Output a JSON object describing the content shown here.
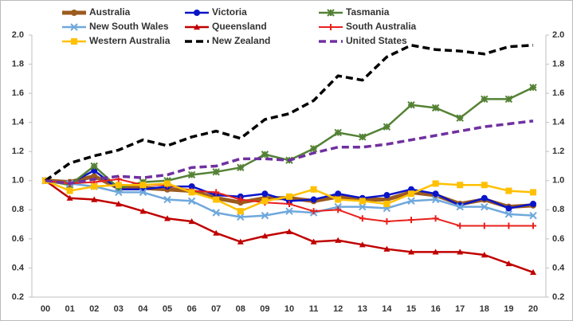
{
  "chart_data": {
    "type": "line",
    "categories": [
      "00",
      "01",
      "02",
      "03",
      "04",
      "05",
      "06",
      "07",
      "08",
      "09",
      "10",
      "11",
      "12",
      "13",
      "14",
      "15",
      "16",
      "17",
      "18",
      "19",
      "20"
    ],
    "ylim": [
      0.2,
      2.0
    ],
    "yticks": [
      0.2,
      0.4,
      0.6,
      0.8,
      {
        "value": 1.0,
        "label": "1.0"
      },
      1.2,
      1.4,
      1.6,
      1.8,
      {
        "value": 2.0,
        "label": "2.0"
      }
    ],
    "y2lim": [
      0.2,
      2.0
    ],
    "y2ticks": [
      0.2,
      0.4,
      0.6,
      0.8,
      {
        "value": 1.0,
        "label": "1.0"
      },
      1.2,
      1.4,
      1.6,
      1.8,
      {
        "value": 2.0,
        "label": "2.0"
      }
    ],
    "series": [
      {
        "name": "Australia",
        "color": "#9c5b1f",
        "marker": "circle",
        "dash": false,
        "width": 5,
        "values": [
          1.0,
          0.99,
          1.03,
          0.95,
          0.95,
          0.94,
          0.93,
          0.88,
          0.85,
          0.88,
          0.88,
          0.86,
          0.89,
          0.87,
          0.87,
          0.92,
          0.9,
          0.84,
          0.87,
          0.82,
          0.83
        ]
      },
      {
        "name": "Victoria",
        "color": "#0a14c8",
        "marker": "circle",
        "dash": false,
        "width": 2.5,
        "values": [
          1.0,
          0.98,
          1.07,
          0.94,
          0.94,
          0.96,
          0.96,
          0.9,
          0.89,
          0.91,
          0.86,
          0.87,
          0.91,
          0.88,
          0.9,
          0.94,
          0.91,
          0.83,
          0.88,
          0.81,
          0.84
        ]
      },
      {
        "name": "Tasmania",
        "color": "#548235",
        "marker": "star",
        "dash": false,
        "width": 2.5,
        "values": [
          1.0,
          0.97,
          1.1,
          0.95,
          0.99,
          1.0,
          1.04,
          1.06,
          1.09,
          1.18,
          1.14,
          1.22,
          1.33,
          1.3,
          1.37,
          1.52,
          1.5,
          1.43,
          1.56,
          1.56,
          1.64
        ]
      },
      {
        "name": "New South Wales",
        "color": "#6fa8dc",
        "marker": "x",
        "dash": false,
        "width": 2.5,
        "values": [
          1.0,
          0.98,
          0.96,
          0.92,
          0.92,
          0.87,
          0.86,
          0.78,
          0.75,
          0.76,
          0.79,
          0.78,
          0.82,
          0.82,
          0.81,
          0.86,
          0.87,
          0.82,
          0.82,
          0.77,
          0.76
        ]
      },
      {
        "name": "Queensland",
        "color": "#c00000",
        "marker": "triangle",
        "dash": false,
        "width": 2.5,
        "values": [
          1.0,
          0.88,
          0.87,
          0.84,
          0.79,
          0.74,
          0.72,
          0.64,
          0.58,
          0.62,
          0.65,
          0.58,
          0.59,
          0.56,
          0.53,
          0.51,
          0.51,
          0.51,
          0.49,
          0.43,
          0.37
        ]
      },
      {
        "name": "South Australia",
        "color": "#e8201c",
        "marker": "plus",
        "dash": false,
        "width": 2,
        "values": [
          1.0,
          0.98,
          0.99,
          1.01,
          0.97,
          0.97,
          0.93,
          0.92,
          0.87,
          0.85,
          0.84,
          0.79,
          0.8,
          0.74,
          0.72,
          0.73,
          0.74,
          0.69,
          0.69,
          0.69,
          0.69
        ]
      },
      {
        "name": "Western Australia",
        "color": "#ffc000",
        "marker": "square",
        "dash": false,
        "width": 2.5,
        "values": [
          1.0,
          0.93,
          0.96,
          0.97,
          0.97,
          0.98,
          0.92,
          0.87,
          0.79,
          0.86,
          0.89,
          0.94,
          0.87,
          0.86,
          0.84,
          0.91,
          0.98,
          0.97,
          0.97,
          0.93,
          0.92
        ]
      },
      {
        "name": "New Zealand",
        "color": "#000000",
        "marker": "none",
        "dash": true,
        "width": 3.5,
        "values": [
          1.0,
          1.12,
          1.17,
          1.21,
          1.28,
          1.24,
          1.3,
          1.34,
          1.29,
          1.42,
          1.46,
          1.55,
          1.72,
          1.69,
          1.85,
          1.93,
          1.9,
          1.89,
          1.87,
          1.92,
          1.93
        ]
      },
      {
        "name": "United States",
        "color": "#7030a0",
        "marker": "none",
        "dash": true,
        "width": 3.5,
        "values": [
          1.0,
          0.98,
          1.01,
          1.03,
          1.02,
          1.04,
          1.09,
          1.1,
          1.15,
          1.15,
          1.14,
          1.19,
          1.23,
          1.23,
          1.25,
          1.28,
          1.31,
          1.34,
          1.37,
          1.39,
          1.41
        ]
      }
    ]
  }
}
